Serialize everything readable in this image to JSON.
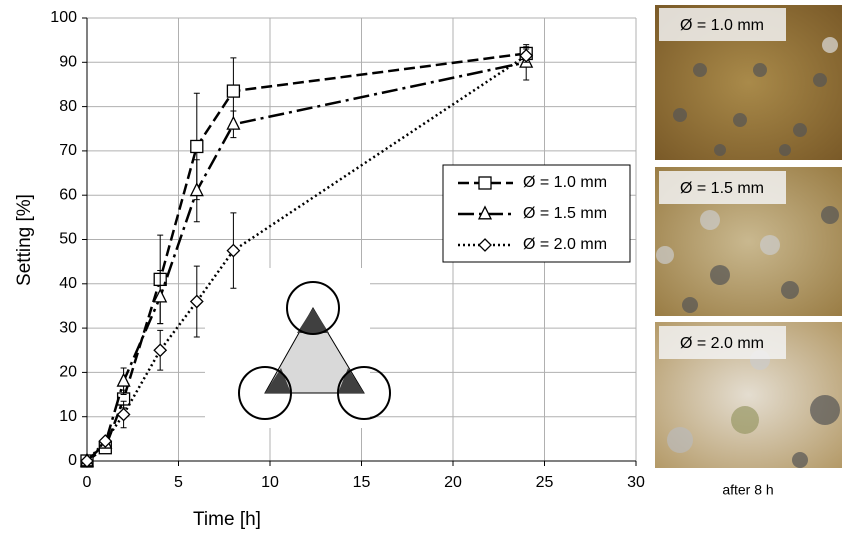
{
  "chart_data": {
    "type": "line",
    "xlabel": "Time [h]",
    "ylabel": "Setting [%]",
    "x": [
      0,
      1,
      2,
      4,
      6,
      8,
      24
    ],
    "xlim": [
      0,
      30
    ],
    "xticks": [
      0,
      5,
      10,
      15,
      20,
      25,
      30
    ],
    "ylim": [
      0,
      100
    ],
    "yticks": [
      0,
      10,
      20,
      30,
      40,
      50,
      60,
      70,
      80,
      90,
      100
    ],
    "grid": true,
    "legend": "right",
    "series": [
      {
        "name": "Ø = 1.0 mm",
        "color": "#000000",
        "dash": "dashed",
        "marker": "square",
        "values": [
          0,
          3,
          14,
          41,
          71,
          83.5,
          92
        ],
        "errors": [
          null,
          null,
          2,
          10,
          12,
          7.5,
          1.5
        ]
      },
      {
        "name": "Ø = 1.5 mm",
        "color": "#000000",
        "dash": "dash-dot",
        "marker": "triangle",
        "values": [
          0,
          4,
          18,
          37,
          61,
          76,
          90
        ],
        "errors": [
          null,
          null,
          3,
          6,
          7,
          3,
          4
        ]
      },
      {
        "name": "Ø = 2.0 mm",
        "color": "#000000",
        "dash": "dotted",
        "marker": "diamond",
        "values": [
          0,
          4.5,
          10.5,
          25,
          36,
          47.5,
          91.5
        ],
        "errors": [
          null,
          null,
          3,
          4.5,
          8,
          8.5,
          1.5
        ]
      }
    ]
  },
  "photos": [
    {
      "label": "Ø = 1.0 mm"
    },
    {
      "label": "Ø = 1.5 mm"
    },
    {
      "label": "Ø = 2.0 mm"
    }
  ],
  "photo_caption": "after 8 h"
}
